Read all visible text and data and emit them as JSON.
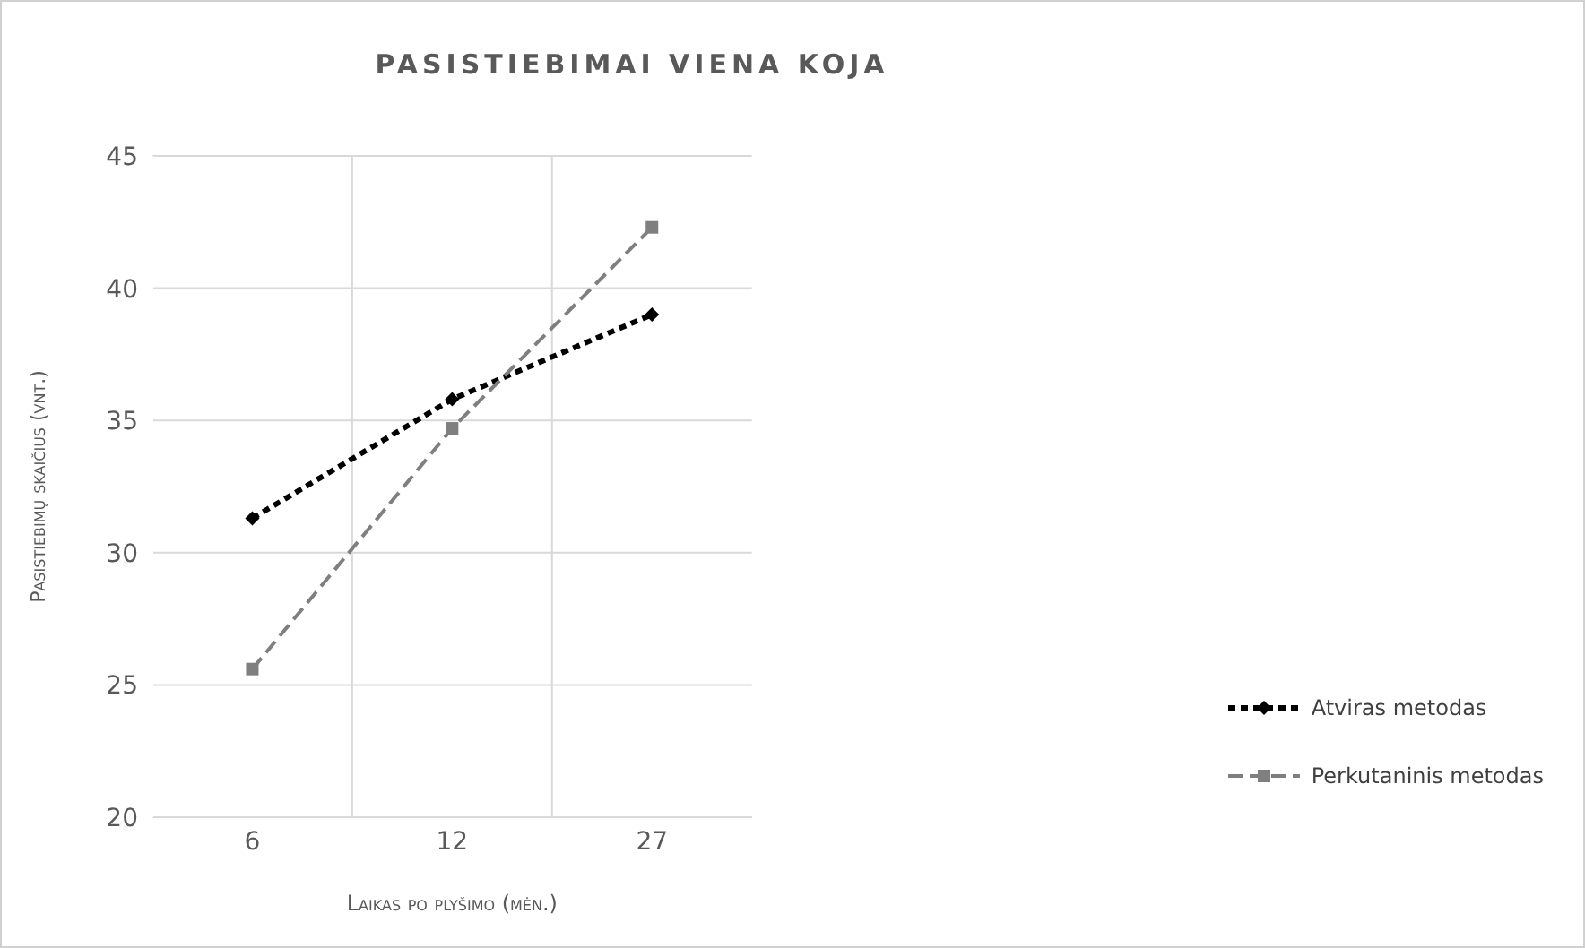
{
  "chart_data": {
    "type": "line",
    "title": "PASISTIEBIMAI VIENA KOJA",
    "xlabel": "Laikas po plyšimo (mėn.)",
    "ylabel": "Pasistiebimų skaičius (vnt.)",
    "categories": [
      "6",
      "12",
      "27"
    ],
    "series": [
      {
        "name": "Atviras metodas",
        "color": "#000000",
        "values": [
          31.3,
          35.8,
          39.0
        ],
        "marker": "diamond",
        "line_style": "dashed"
      },
      {
        "name": "Perkutaninis metodas",
        "color": "#7f7f7f",
        "values": [
          25.6,
          34.7,
          42.3
        ],
        "marker": "square",
        "line_style": "dashed"
      }
    ],
    "ylim": [
      20,
      45
    ],
    "yticks": [
      20,
      25,
      30,
      35,
      40,
      45
    ],
    "grid": true,
    "legend": "right"
  }
}
